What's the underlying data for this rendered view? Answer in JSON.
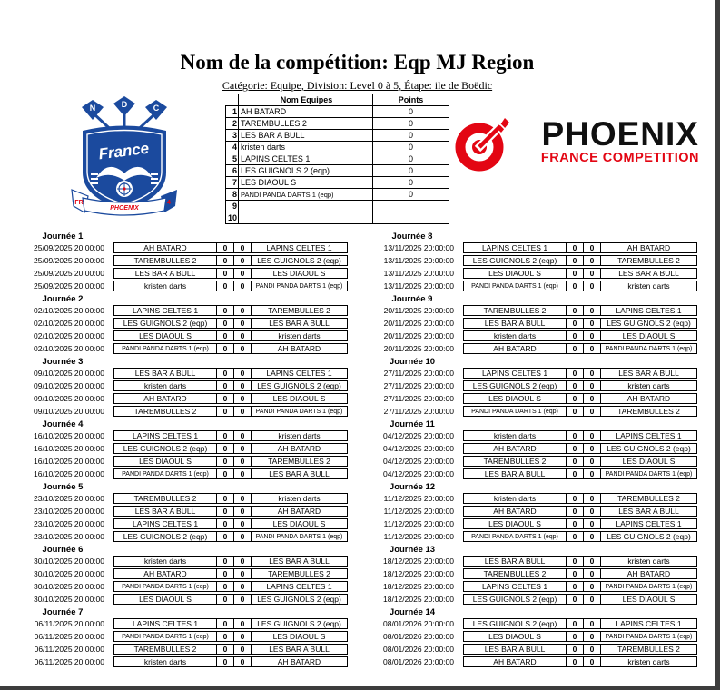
{
  "page": {
    "title": "Nom de la compétition: Eqp MJ Region",
    "subtitle": "Catégorie: Equipe, Division: Level 0 à 5, Étape: ile de Boëdic"
  },
  "standings": {
    "headers": {
      "name": "Nom Equipes",
      "points": "Points"
    },
    "rows": [
      {
        "rank": "1",
        "team": "AH BATARD",
        "points": "0"
      },
      {
        "rank": "2",
        "team": "TAREMBULLES 2",
        "points": "0"
      },
      {
        "rank": "3",
        "team": "LES BAR A BULL",
        "points": "0"
      },
      {
        "rank": "4",
        "team": "kristen darts",
        "points": "0"
      },
      {
        "rank": "5",
        "team": "LAPINS CELTES 1",
        "points": "0"
      },
      {
        "rank": "6",
        "team": "LES GUIGNOLS 2 (eqp)",
        "points": "0"
      },
      {
        "rank": "7",
        "team": "LES DIAOUL S",
        "points": "0"
      },
      {
        "rank": "8",
        "team": "PANDI PANDA DARTS 1 (eqp)",
        "points": "0"
      },
      {
        "rank": "9",
        "team": "",
        "points": ""
      },
      {
        "rank": "10",
        "team": "",
        "points": ""
      }
    ]
  },
  "logos": {
    "club": {
      "flight_letters": [
        "N",
        "D",
        "C"
      ],
      "banner_text": "France",
      "ribbon_text": "PHOENIX",
      "ribbon_left": "FR",
      "ribbon_right": "4",
      "blue": "#1b4a9e",
      "red": "#e30613"
    },
    "brand": {
      "name": "PHOENIX",
      "tagline": "FRANCE COMPETITION",
      "red": "#e30613",
      "black": "#101010"
    }
  },
  "schedule": {
    "left_column": [
      {
        "label": "Journée 1",
        "matches": [
          {
            "datetime": "25/09/2025 20:00:00",
            "home": "AH BATARD",
            "home_score": "0",
            "away_score": "0",
            "away": "LAPINS CELTES 1"
          },
          {
            "datetime": "25/09/2025 20:00:00",
            "home": "TAREMBULLES 2",
            "home_score": "0",
            "away_score": "0",
            "away": "LES GUIGNOLS 2 (eqp)"
          },
          {
            "datetime": "25/09/2025 20:00:00",
            "home": "LES BAR A BULL",
            "home_score": "0",
            "away_score": "0",
            "away": "LES DIAOUL S"
          },
          {
            "datetime": "25/09/2025 20:00:00",
            "home": "kristen darts",
            "home_score": "0",
            "away_score": "0",
            "away": "PANDI PANDA DARTS 1 (eqp)"
          }
        ]
      },
      {
        "label": "Journée 2",
        "matches": [
          {
            "datetime": "02/10/2025 20:00:00",
            "home": "LAPINS CELTES 1",
            "home_score": "0",
            "away_score": "0",
            "away": "TAREMBULLES 2"
          },
          {
            "datetime": "02/10/2025 20:00:00",
            "home": "LES GUIGNOLS 2 (eqp)",
            "home_score": "0",
            "away_score": "0",
            "away": "LES BAR A BULL"
          },
          {
            "datetime": "02/10/2025 20:00:00",
            "home": "LES DIAOUL S",
            "home_score": "0",
            "away_score": "0",
            "away": "kristen darts"
          },
          {
            "datetime": "02/10/2025 20:00:00",
            "home": "PANDI PANDA DARTS 1 (eqp)",
            "home_score": "0",
            "away_score": "0",
            "away": "AH BATARD"
          }
        ]
      },
      {
        "label": "Journée 3",
        "matches": [
          {
            "datetime": "09/10/2025 20:00:00",
            "home": "LES BAR A BULL",
            "home_score": "0",
            "away_score": "0",
            "away": "LAPINS CELTES 1"
          },
          {
            "datetime": "09/10/2025 20:00:00",
            "home": "kristen darts",
            "home_score": "0",
            "away_score": "0",
            "away": "LES GUIGNOLS 2 (eqp)"
          },
          {
            "datetime": "09/10/2025 20:00:00",
            "home": "AH BATARD",
            "home_score": "0",
            "away_score": "0",
            "away": "LES DIAOUL S"
          },
          {
            "datetime": "09/10/2025 20:00:00",
            "home": "TAREMBULLES 2",
            "home_score": "0",
            "away_score": "0",
            "away": "PANDI PANDA DARTS 1 (eqp)"
          }
        ]
      },
      {
        "label": "Journée 4",
        "matches": [
          {
            "datetime": "16/10/2025 20:00:00",
            "home": "LAPINS CELTES 1",
            "home_score": "0",
            "away_score": "0",
            "away": "kristen darts"
          },
          {
            "datetime": "16/10/2025 20:00:00",
            "home": "LES GUIGNOLS 2 (eqp)",
            "home_score": "0",
            "away_score": "0",
            "away": "AH BATARD"
          },
          {
            "datetime": "16/10/2025 20:00:00",
            "home": "LES DIAOUL S",
            "home_score": "0",
            "away_score": "0",
            "away": "TAREMBULLES 2"
          },
          {
            "datetime": "16/10/2025 20:00:00",
            "home": "PANDI PANDA DARTS 1 (eqp)",
            "home_score": "0",
            "away_score": "0",
            "away": "LES BAR A BULL"
          }
        ]
      },
      {
        "label": "Journée 5",
        "matches": [
          {
            "datetime": "23/10/2025 20:00:00",
            "home": "TAREMBULLES 2",
            "home_score": "0",
            "away_score": "0",
            "away": "kristen darts"
          },
          {
            "datetime": "23/10/2025 20:00:00",
            "home": "LES BAR A BULL",
            "home_score": "0",
            "away_score": "0",
            "away": "AH BATARD"
          },
          {
            "datetime": "23/10/2025 20:00:00",
            "home": "LAPINS CELTES 1",
            "home_score": "0",
            "away_score": "0",
            "away": "LES DIAOUL S"
          },
          {
            "datetime": "23/10/2025 20:00:00",
            "home": "LES GUIGNOLS 2 (eqp)",
            "home_score": "0",
            "away_score": "0",
            "away": "PANDI PANDA DARTS 1 (eqp)"
          }
        ]
      },
      {
        "label": "Journée 6",
        "matches": [
          {
            "datetime": "30/10/2025 20:00:00",
            "home": "kristen darts",
            "home_score": "0",
            "away_score": "0",
            "away": "LES BAR A BULL"
          },
          {
            "datetime": "30/10/2025 20:00:00",
            "home": "AH BATARD",
            "home_score": "0",
            "away_score": "0",
            "away": "TAREMBULLES 2"
          },
          {
            "datetime": "30/10/2025 20:00:00",
            "home": "PANDI PANDA DARTS 1 (eqp)",
            "home_score": "0",
            "away_score": "0",
            "away": "LAPINS CELTES 1"
          },
          {
            "datetime": "30/10/2025 20:00:00",
            "home": "LES DIAOUL S",
            "home_score": "0",
            "away_score": "0",
            "away": "LES GUIGNOLS 2 (eqp)"
          }
        ]
      },
      {
        "label": "Journée 7",
        "matches": [
          {
            "datetime": "06/11/2025 20:00:00",
            "home": "LAPINS CELTES 1",
            "home_score": "0",
            "away_score": "0",
            "away": "LES GUIGNOLS 2 (eqp)"
          },
          {
            "datetime": "06/11/2025 20:00:00",
            "home": "PANDI PANDA DARTS 1 (eqp)",
            "home_score": "0",
            "away_score": "0",
            "away": "LES DIAOUL S"
          },
          {
            "datetime": "06/11/2025 20:00:00",
            "home": "TAREMBULLES 2",
            "home_score": "0",
            "away_score": "0",
            "away": "LES BAR A BULL"
          },
          {
            "datetime": "06/11/2025 20:00:00",
            "home": "kristen darts",
            "home_score": "0",
            "away_score": "0",
            "away": "AH BATARD"
          }
        ]
      }
    ],
    "right_column": [
      {
        "label": "Journée 8",
        "matches": [
          {
            "datetime": "13/11/2025 20:00:00",
            "home": "LAPINS CELTES 1",
            "home_score": "0",
            "away_score": "0",
            "away": "AH BATARD"
          },
          {
            "datetime": "13/11/2025 20:00:00",
            "home": "LES GUIGNOLS 2 (eqp)",
            "home_score": "0",
            "away_score": "0",
            "away": "TAREMBULLES 2"
          },
          {
            "datetime": "13/11/2025 20:00:00",
            "home": "LES DIAOUL S",
            "home_score": "0",
            "away_score": "0",
            "away": "LES BAR A BULL"
          },
          {
            "datetime": "13/11/2025 20:00:00",
            "home": "PANDI PANDA DARTS 1 (eqp)",
            "home_score": "0",
            "away_score": "0",
            "away": "kristen darts"
          }
        ]
      },
      {
        "label": "Journée 9",
        "matches": [
          {
            "datetime": "20/11/2025 20:00:00",
            "home": "TAREMBULLES 2",
            "home_score": "0",
            "away_score": "0",
            "away": "LAPINS CELTES 1"
          },
          {
            "datetime": "20/11/2025 20:00:00",
            "home": "LES BAR A BULL",
            "home_score": "0",
            "away_score": "0",
            "away": "LES GUIGNOLS 2 (eqp)"
          },
          {
            "datetime": "20/11/2025 20:00:00",
            "home": "kristen darts",
            "home_score": "0",
            "away_score": "0",
            "away": "LES DIAOUL S"
          },
          {
            "datetime": "20/11/2025 20:00:00",
            "home": "AH BATARD",
            "home_score": "0",
            "away_score": "0",
            "away": "PANDI PANDA DARTS 1 (eqp)"
          }
        ]
      },
      {
        "label": "Journée 10",
        "matches": [
          {
            "datetime": "27/11/2025 20:00:00",
            "home": "LAPINS CELTES 1",
            "home_score": "0",
            "away_score": "0",
            "away": "LES BAR A BULL"
          },
          {
            "datetime": "27/11/2025 20:00:00",
            "home": "LES GUIGNOLS 2 (eqp)",
            "home_score": "0",
            "away_score": "0",
            "away": "kristen darts"
          },
          {
            "datetime": "27/11/2025 20:00:00",
            "home": "LES DIAOUL S",
            "home_score": "0",
            "away_score": "0",
            "away": "AH BATARD"
          },
          {
            "datetime": "27/11/2025 20:00:00",
            "home": "PANDI PANDA DARTS 1 (eqp)",
            "home_score": "0",
            "away_score": "0",
            "away": "TAREMBULLES 2"
          }
        ]
      },
      {
        "label": "Journée 11",
        "matches": [
          {
            "datetime": "04/12/2025 20:00:00",
            "home": "kristen darts",
            "home_score": "0",
            "away_score": "0",
            "away": "LAPINS CELTES 1"
          },
          {
            "datetime": "04/12/2025 20:00:00",
            "home": "AH BATARD",
            "home_score": "0",
            "away_score": "0",
            "away": "LES GUIGNOLS 2 (eqp)"
          },
          {
            "datetime": "04/12/2025 20:00:00",
            "home": "TAREMBULLES 2",
            "home_score": "0",
            "away_score": "0",
            "away": "LES DIAOUL S"
          },
          {
            "datetime": "04/12/2025 20:00:00",
            "home": "LES BAR A BULL",
            "home_score": "0",
            "away_score": "0",
            "away": "PANDI PANDA DARTS 1 (eqp)"
          }
        ]
      },
      {
        "label": "Journée 12",
        "matches": [
          {
            "datetime": "11/12/2025 20:00:00",
            "home": "kristen darts",
            "home_score": "0",
            "away_score": "0",
            "away": "TAREMBULLES 2"
          },
          {
            "datetime": "11/12/2025 20:00:00",
            "home": "AH BATARD",
            "home_score": "0",
            "away_score": "0",
            "away": "LES BAR A BULL"
          },
          {
            "datetime": "11/12/2025 20:00:00",
            "home": "LES DIAOUL S",
            "home_score": "0",
            "away_score": "0",
            "away": "LAPINS CELTES 1"
          },
          {
            "datetime": "11/12/2025 20:00:00",
            "home": "PANDI PANDA DARTS 1 (eqp)",
            "home_score": "0",
            "away_score": "0",
            "away": "LES GUIGNOLS 2 (eqp)"
          }
        ]
      },
      {
        "label": "Journée 13",
        "matches": [
          {
            "datetime": "18/12/2025 20:00:00",
            "home": "LES BAR A BULL",
            "home_score": "0",
            "away_score": "0",
            "away": "kristen darts"
          },
          {
            "datetime": "18/12/2025 20:00:00",
            "home": "TAREMBULLES 2",
            "home_score": "0",
            "away_score": "0",
            "away": "AH BATARD"
          },
          {
            "datetime": "18/12/2025 20:00:00",
            "home": "LAPINS CELTES 1",
            "home_score": "0",
            "away_score": "0",
            "away": "PANDI PANDA DARTS 1 (eqp)"
          },
          {
            "datetime": "18/12/2025 20:00:00",
            "home": "LES GUIGNOLS 2 (eqp)",
            "home_score": "0",
            "away_score": "0",
            "away": "LES DIAOUL S"
          }
        ]
      },
      {
        "label": "Journée 14",
        "matches": [
          {
            "datetime": "08/01/2026 20:00:00",
            "home": "LES GUIGNOLS 2 (eqp)",
            "home_score": "0",
            "away_score": "0",
            "away": "LAPINS CELTES 1"
          },
          {
            "datetime": "08/01/2026 20:00:00",
            "home": "LES DIAOUL S",
            "home_score": "0",
            "away_score": "0",
            "away": "PANDI PANDA DARTS 1 (eqp)"
          },
          {
            "datetime": "08/01/2026 20:00:00",
            "home": "LES BAR A BULL",
            "home_score": "0",
            "away_score": "0",
            "away": "TAREMBULLES 2"
          },
          {
            "datetime": "08/01/2026 20:00:00",
            "home": "AH BATARD",
            "home_score": "0",
            "away_score": "0",
            "away": "kristen darts"
          }
        ]
      }
    ]
  }
}
